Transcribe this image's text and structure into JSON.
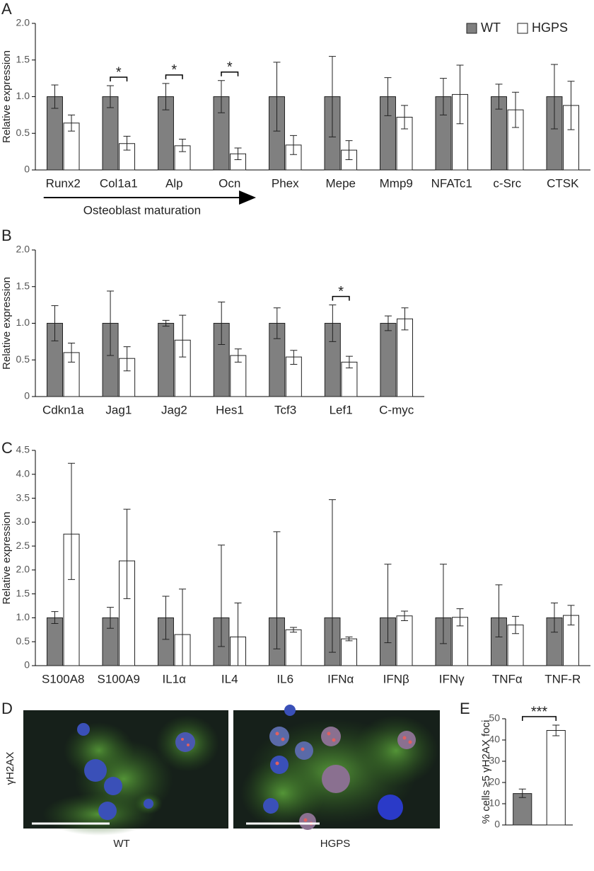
{
  "chart_data": [
    {
      "type": "bar",
      "panel": "A",
      "ylabel": "Relative expression",
      "categories": [
        "Runx2",
        "Col1a1",
        "Alp",
        "Ocn",
        "Phex",
        "Mepe",
        "Mmp9",
        "NFATc1",
        "c-Src",
        "CTSK"
      ],
      "series": [
        {
          "name": "WT",
          "color": "#808080",
          "values": [
            1.0,
            1.0,
            1.0,
            1.0,
            1.0,
            1.0,
            1.0,
            1.0,
            1.0,
            1.0
          ],
          "lower": [
            0.84,
            0.85,
            0.82,
            0.78,
            0.53,
            0.45,
            0.74,
            0.75,
            0.83,
            0.56
          ],
          "upper": [
            1.16,
            1.15,
            1.18,
            1.22,
            1.47,
            1.55,
            1.26,
            1.25,
            1.17,
            1.44
          ]
        },
        {
          "name": "HGPS",
          "color": "#ffffff",
          "values": [
            0.64,
            0.36,
            0.33,
            0.22,
            0.34,
            0.27,
            0.72,
            1.03,
            0.82,
            0.88
          ],
          "lower": [
            0.53,
            0.27,
            0.25,
            0.14,
            0.21,
            0.14,
            0.56,
            0.63,
            0.58,
            0.55
          ],
          "upper": [
            0.75,
            0.46,
            0.42,
            0.3,
            0.47,
            0.4,
            0.88,
            1.43,
            1.06,
            1.21
          ]
        }
      ],
      "significance": [
        {
          "category": "Col1a1",
          "label": "*"
        },
        {
          "category": "Alp",
          "label": "*"
        },
        {
          "category": "Ocn",
          "label": "*"
        }
      ],
      "arrow": {
        "text": "Osteoblast maturation",
        "from": "Runx2",
        "to": "Ocn"
      },
      "ylim": [
        0,
        2.0
      ],
      "yticks": [
        0,
        {
          "value": 0.5,
          "label": "0.5"
        },
        {
          "value": 1.0,
          "label": "1.0"
        },
        {
          "value": 1.5,
          "label": "1.5"
        },
        {
          "value": 2.0,
          "label": "2.0"
        }
      ],
      "legend": "upper right"
    },
    {
      "type": "bar",
      "panel": "B",
      "ylabel": "Relative expression",
      "categories": [
        "Cdkn1a",
        "Jag1",
        "Jag2",
        "Hes1",
        "Tcf3",
        "Lef1",
        "C-myc"
      ],
      "series": [
        {
          "name": "WT",
          "color": "#808080",
          "values": [
            1.0,
            1.0,
            1.0,
            1.0,
            1.0,
            1.0,
            1.0
          ],
          "lower": [
            0.76,
            0.56,
            0.96,
            0.71,
            0.79,
            0.75,
            0.9
          ],
          "upper": [
            1.24,
            1.44,
            1.04,
            1.29,
            1.21,
            1.25,
            1.1
          ]
        },
        {
          "name": "HGPS",
          "color": "#ffffff",
          "values": [
            0.6,
            0.52,
            0.77,
            0.56,
            0.54,
            0.47,
            1.06
          ],
          "lower": [
            0.47,
            0.35,
            0.54,
            0.47,
            0.44,
            0.39,
            0.91
          ],
          "upper": [
            0.73,
            0.68,
            1.11,
            0.65,
            0.63,
            0.55,
            1.21
          ]
        }
      ],
      "significance": [
        {
          "category": "Lef1",
          "label": "*"
        }
      ],
      "ylim": [
        0,
        2.0
      ],
      "yticks": [
        0,
        {
          "value": 0.5,
          "label": "0.5"
        },
        {
          "value": 1.0,
          "label": "1.0"
        },
        {
          "value": 1.5,
          "label": "1.5"
        },
        {
          "value": 2.0,
          "label": "2.0"
        }
      ]
    },
    {
      "type": "bar",
      "panel": "C",
      "ylabel": "Relative expression",
      "categories": [
        "S100A8",
        "S100A9",
        "IL1α",
        "IL4",
        "IL6",
        "IFNα",
        "IFNβ",
        "IFNγ",
        "TNFα",
        "TNF-R"
      ],
      "series": [
        {
          "name": "WT",
          "color": "#808080",
          "values": [
            1.0,
            1.0,
            1.0,
            1.0,
            1.0,
            1.0,
            1.0,
            1.0,
            1.0,
            1.0
          ],
          "lower": [
            0.88,
            0.78,
            0.55,
            0.4,
            0.35,
            0.28,
            0.48,
            0.46,
            0.6,
            0.7
          ],
          "upper": [
            1.13,
            1.22,
            1.45,
            2.52,
            2.8,
            3.47,
            2.12,
            2.12,
            1.69,
            1.31
          ]
        },
        {
          "name": "HGPS",
          "color": "#ffffff",
          "values": [
            2.75,
            2.19,
            0.65,
            0.6,
            0.75,
            0.56,
            1.04,
            1.01,
            0.85,
            1.05
          ],
          "lower": [
            1.8,
            1.4,
            0,
            0,
            0.7,
            0.52,
            0.94,
            0.83,
            0.67,
            0.85
          ],
          "upper": [
            4.23,
            3.27,
            1.6,
            1.31,
            0.8,
            0.6,
            1.14,
            1.19,
            1.03,
            1.26
          ]
        }
      ],
      "ylim": [
        0,
        4.5
      ],
      "yticks": [
        0,
        {
          "value": 0.5,
          "label": "0.5"
        },
        {
          "value": 1.0,
          "label": "1.0"
        },
        {
          "value": 1.5,
          "label": "1.5"
        },
        {
          "value": 2.0,
          "label": "2.0"
        },
        {
          "value": 2.5,
          "label": "2.5"
        },
        {
          "value": 3.0,
          "label": "3.0"
        },
        {
          "value": 3.5,
          "label": "3.5"
        },
        {
          "value": 4.0,
          "label": "4.0"
        },
        {
          "value": 4.5,
          "label": "4.5"
        }
      ]
    },
    {
      "type": "bar",
      "panel": "E",
      "ylabel": "% cells ≥5 γH2AX foci",
      "categories": [
        null,
        null
      ],
      "values": [
        14.8,
        44.5
      ],
      "lower": [
        12.9,
        42.0
      ],
      "upper": [
        16.9,
        47.0
      ],
      "colors": [
        "#808080",
        "#ffffff"
      ],
      "annotation": "***",
      "ylim": [
        0,
        50
      ],
      "yticks": [
        0,
        10,
        20,
        30,
        40,
        50
      ]
    }
  ],
  "panel_d": {
    "letter": "D",
    "stain": "γH2AX",
    "labels": [
      "WT",
      "HGPS"
    ]
  }
}
